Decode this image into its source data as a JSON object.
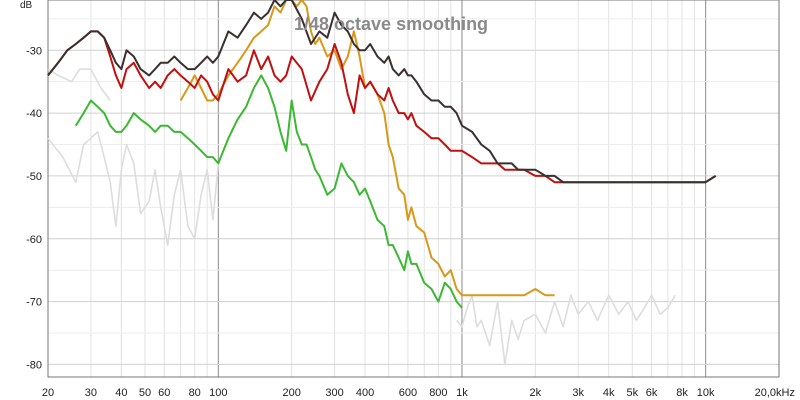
{
  "chart_data": {
    "type": "line",
    "title": "1/48 octave smoothing",
    "ylabel": "dB",
    "xlabel": "",
    "x_scale": "log",
    "xlim": [
      20,
      20000
    ],
    "ylim": [
      -82,
      -22
    ],
    "grid": true,
    "legend": "none",
    "x_ticks": [
      {
        "value": 20,
        "label": "20"
      },
      {
        "value": 30,
        "label": "30"
      },
      {
        "value": 40,
        "label": "40"
      },
      {
        "value": 50,
        "label": "50"
      },
      {
        "value": 60,
        "label": "60"
      },
      {
        "value": 80,
        "label": "80"
      },
      {
        "value": 100,
        "label": "100"
      },
      {
        "value": 200,
        "label": "200"
      },
      {
        "value": 300,
        "label": "300"
      },
      {
        "value": 400,
        "label": "400"
      },
      {
        "value": 600,
        "label": "600"
      },
      {
        "value": 800,
        "label": "800"
      },
      {
        "value": 1000,
        "label": "1k"
      },
      {
        "value": 2000,
        "label": "2k"
      },
      {
        "value": 3000,
        "label": "3k"
      },
      {
        "value": 4000,
        "label": "4k"
      },
      {
        "value": 5000,
        "label": "5k"
      },
      {
        "value": 6000,
        "label": "6k"
      },
      {
        "value": 8000,
        "label": "8k"
      },
      {
        "value": 10000,
        "label": "10k"
      },
      {
        "value": 20000,
        "label": "20,0kHz"
      }
    ],
    "y_ticks": [
      {
        "value": -30,
        "label": "-30"
      },
      {
        "value": -40,
        "label": "-40"
      },
      {
        "value": -50,
        "label": "-50"
      },
      {
        "value": -60,
        "label": "-60"
      },
      {
        "value": -70,
        "label": "-70"
      },
      {
        "value": -80,
        "label": "-80"
      }
    ],
    "series": [
      {
        "color": "#dddddd",
        "x": [
          20,
          23,
          26,
          28,
          30,
          32,
          34,
          36,
          38,
          40,
          42,
          45,
          48,
          52,
          55,
          58,
          62,
          66,
          70,
          75,
          80,
          85,
          90,
          95,
          100
        ],
        "y": [
          -44,
          -47,
          -51,
          -45,
          -44,
          -43,
          -47,
          -51,
          -58,
          -49,
          -45,
          -48,
          -56,
          -54,
          -49,
          -55,
          -61,
          -53,
          -49,
          -58,
          -60,
          -53,
          -49,
          -57,
          -48
        ]
      },
      {
        "color": "#dddddd",
        "x": [
          20,
          22,
          25,
          27,
          30,
          33,
          36
        ],
        "y": [
          -33,
          -34,
          -35,
          -33,
          -33,
          -36,
          -38
        ]
      },
      {
        "color": "#dddddd",
        "x": [
          950,
          1000,
          1050,
          1100,
          1150,
          1200,
          1300,
          1400,
          1500,
          1600,
          1700,
          1800,
          2000,
          2200,
          2400,
          2600,
          2800,
          3000,
          3300,
          3600,
          4000,
          4400,
          4800,
          5200,
          5600,
          6000,
          6500,
          7000,
          7500
        ],
        "y": [
          -73,
          -74,
          -71,
          -69,
          -74,
          -73,
          -77,
          -70,
          -80,
          -73,
          -76,
          -73,
          -72,
          -75,
          -70,
          -74,
          -69,
          -72,
          -70,
          -73,
          -69,
          -72,
          -70,
          -73,
          -71,
          -69,
          -72,
          -71,
          -69
        ]
      },
      {
        "color": "#3cb832",
        "x": [
          26,
          28,
          30,
          32,
          34,
          36,
          38,
          40,
          42,
          45,
          48,
          52,
          55,
          58,
          62,
          66,
          70,
          75,
          80,
          85,
          90,
          95,
          100,
          110,
          120,
          130,
          140,
          150,
          160,
          170,
          180,
          190,
          200,
          210,
          220,
          230,
          240,
          250,
          260,
          280,
          300,
          320,
          340,
          360,
          380,
          400,
          420,
          450,
          480,
          500,
          520,
          550,
          580,
          600,
          620,
          650,
          700,
          750,
          800,
          850,
          900,
          950,
          1000
        ],
        "y": [
          -42,
          -40,
          -38,
          -39,
          -40,
          -42,
          -43,
          -43,
          -42,
          -40,
          -41,
          -42,
          -43,
          -42,
          -42,
          -43,
          -43,
          -44,
          -45,
          -46,
          -47,
          -47,
          -48,
          -44,
          -41,
          -39,
          -36,
          -34,
          -36,
          -39,
          -43,
          -46,
          -38,
          -43,
          -45,
          -45,
          -47,
          -49,
          -50,
          -53,
          -52,
          -48,
          -50,
          -51,
          -53,
          -52,
          -54,
          -57,
          -58,
          -61,
          -61,
          -63,
          -65,
          -62,
          -64,
          -64,
          -67,
          -68,
          -70,
          -67,
          -68,
          -70,
          -71
        ]
      },
      {
        "color": "#d89818",
        "x": [
          70,
          75,
          80,
          85,
          90,
          95,
          100,
          110,
          120,
          130,
          140,
          150,
          160,
          170,
          180,
          190,
          200,
          210,
          220,
          230,
          240,
          250,
          260,
          280,
          300,
          320,
          340,
          360,
          380,
          400,
          420,
          450,
          480,
          500,
          520,
          550,
          580,
          600,
          620,
          650,
          700,
          750,
          800,
          850,
          900,
          950,
          1000,
          1100,
          1200,
          1300,
          1400,
          1500,
          1600,
          1700,
          1800,
          2000,
          2200,
          2400
        ],
        "y": [
          -38,
          -36,
          -34,
          -36,
          -38,
          -38,
          -37,
          -34,
          -32,
          -30,
          -28,
          -27,
          -26,
          -23,
          -24,
          -22,
          -22,
          -23,
          -22,
          -23,
          -27,
          -29,
          -28,
          -31,
          -30,
          -33,
          -31,
          -27,
          -31,
          -36,
          -35,
          -37,
          -40,
          -45,
          -47,
          -52,
          -53,
          -57,
          -55,
          -58,
          -59,
          -63,
          -64,
          -66,
          -65,
          -68,
          -69,
          -69,
          -69,
          -69,
          -69,
          -69,
          -69,
          -69,
          -69,
          -68,
          -69,
          -69
        ]
      },
      {
        "color": "#c01010",
        "x": [
          20,
          22,
          24,
          26,
          28,
          30,
          32,
          34,
          36,
          38,
          40,
          42,
          45,
          48,
          52,
          55,
          58,
          62,
          66,
          70,
          75,
          80,
          85,
          90,
          95,
          100,
          110,
          120,
          130,
          140,
          150,
          160,
          170,
          180,
          190,
          200,
          220,
          240,
          260,
          280,
          300,
          320,
          340,
          360,
          380,
          400,
          420,
          450,
          480,
          500,
          520,
          550,
          580,
          600,
          620,
          650,
          700,
          750,
          800,
          850,
          900,
          950,
          1000,
          1100,
          1200,
          1300,
          1400,
          1500,
          1600,
          1700,
          1800,
          2000,
          2200,
          2400,
          2600,
          2800,
          3000,
          3300,
          3600,
          4000,
          4400,
          4800,
          5200,
          5600,
          6000,
          6500,
          7000,
          7500,
          8000,
          8500,
          9000,
          9500,
          10000,
          11000
        ],
        "y": [
          -34,
          -32,
          -30,
          -29,
          -28,
          -27,
          -27,
          -28,
          -31,
          -34,
          -36,
          -33,
          -32,
          -34,
          -36,
          -35,
          -36,
          -34,
          -33,
          -34,
          -35,
          -36,
          -34,
          -35,
          -37,
          -38,
          -33,
          -35,
          -34,
          -30,
          -33,
          -31,
          -34,
          -35,
          -34,
          -31,
          -33,
          -38,
          -35,
          -33,
          -29,
          -32,
          -37,
          -40,
          -34,
          -36,
          -35,
          -37,
          -38,
          -36,
          -38,
          -40,
          -40,
          -41,
          -40,
          -42,
          -43,
          -44,
          -44,
          -45,
          -46,
          -46,
          -46,
          -47,
          -48,
          -48,
          -48,
          -49,
          -49,
          -49,
          -49,
          -50,
          -50,
          -51,
          -51,
          -51,
          -51,
          -51,
          -51,
          -51,
          -51,
          -51,
          -51,
          -51,
          -51,
          -51,
          -51,
          -51,
          -51,
          -51,
          -51,
          -51,
          -51,
          -50
        ]
      },
      {
        "color": "#3a3030",
        "x": [
          20,
          22,
          24,
          26,
          28,
          30,
          32,
          34,
          36,
          38,
          40,
          42,
          45,
          48,
          52,
          55,
          58,
          62,
          66,
          70,
          75,
          80,
          85,
          90,
          95,
          100,
          110,
          120,
          130,
          140,
          150,
          160,
          170,
          180,
          190,
          200,
          220,
          240,
          260,
          280,
          300,
          320,
          340,
          360,
          380,
          400,
          420,
          450,
          480,
          500,
          520,
          550,
          580,
          600,
          620,
          650,
          700,
          750,
          800,
          850,
          900,
          950,
          1000,
          1100,
          1200,
          1300,
          1400,
          1500,
          1600,
          1700,
          1800,
          2000,
          2200,
          2400,
          2600,
          2800,
          3000,
          3300,
          3600,
          4000,
          4400,
          4800,
          5200,
          5600,
          6000,
          6500,
          7000,
          7500,
          8000,
          8500,
          9000,
          9500,
          10000,
          11000
        ],
        "y": [
          -34,
          -32,
          -30,
          -29,
          -28,
          -27,
          -27,
          -28,
          -30,
          -32,
          -33,
          -30,
          -31,
          -33,
          -34,
          -33,
          -32,
          -32,
          -31,
          -32,
          -33,
          -33,
          -32,
          -31,
          -32,
          -31,
          -27,
          -28,
          -26,
          -24,
          -25,
          -24,
          -22,
          -23,
          -22,
          -22,
          -25,
          -29,
          -27,
          -28,
          -24,
          -26,
          -27,
          -29,
          -30,
          -30,
          -29,
          -31,
          -32,
          -31,
          -33,
          -34,
          -33,
          -34,
          -34,
          -35,
          -37,
          -38,
          -38,
          -39,
          -39,
          -40,
          -42,
          -43,
          -45,
          -46,
          -48,
          -48,
          -48,
          -49,
          -49,
          -49,
          -50,
          -50,
          -51,
          -51,
          -51,
          -51,
          -51,
          -51,
          -51,
          -51,
          -51,
          -51,
          -51,
          -51,
          -51,
          -51,
          -51,
          -51,
          -51,
          -51,
          -51,
          -50
        ]
      }
    ]
  }
}
